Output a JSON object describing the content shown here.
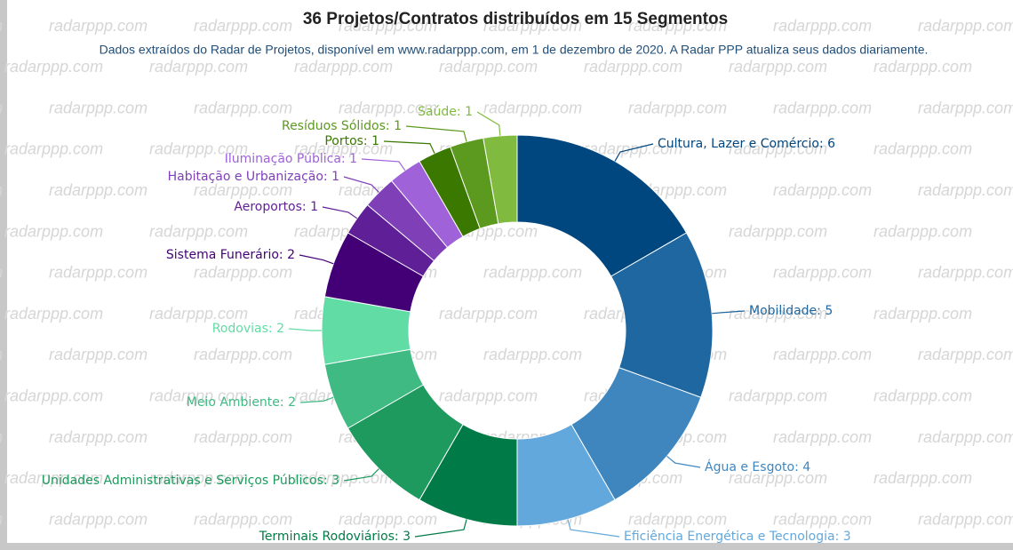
{
  "chart_data": {
    "type": "donut",
    "title": "36 Projetos/Contratos distribuídos em 15 Segmentos",
    "subtitle": "Dados extraídos do Radar de Projetos, disponível em www.radarppp.com, em 1 de dezembro de 2020. A Radar PPP atualiza seus dados diariamente.",
    "watermark": "radarppp.com",
    "values": [
      6,
      5,
      4,
      3,
      3,
      3,
      2,
      2,
      2,
      1,
      1,
      1,
      1,
      1,
      1
    ],
    "value_labels": [
      "Cultura, Lazer e Comércio: 6",
      "Mobilidade: 5",
      "Água e Esgoto: 4",
      "Eficiência Energética e Tecnologia: 3",
      "Terminais Rodoviários: 3",
      "Unidades Administrativas e Serviços Públicos: 3",
      "Meio Ambiente: 2",
      "Rodovias: 2",
      "Sistema Funerário: 2",
      "Aeroportos: 1",
      "Habitação e Urbanização: 1",
      "Iluminação Pública: 1",
      "Portos: 1",
      "Resíduos Sólidos: 1",
      "Saúde: 1"
    ],
    "colors": [
      "#00467f",
      "#1f67a0",
      "#3f86bf",
      "#62a8dc",
      "#007a46",
      "#1f9a5e",
      "#3fba83",
      "#62dca5",
      "#430076",
      "#5f1f96",
      "#7e3fb7",
      "#9f62d9",
      "#3a7800",
      "#5c991f",
      "#80bb3f"
    ]
  }
}
